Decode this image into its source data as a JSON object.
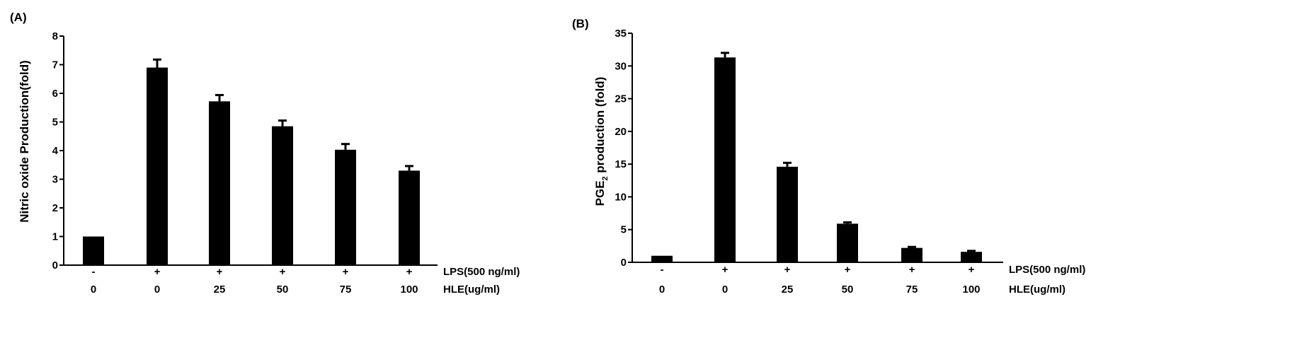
{
  "chart_data": [
    {
      "type": "bar",
      "panel_label": "(A)",
      "ylabel": "Nitric oxide Production(fold)",
      "ylim": [
        0,
        8
      ],
      "yticks": [
        0,
        1,
        2,
        3,
        4,
        5,
        6,
        7,
        8
      ],
      "categories": [
        "-/0",
        "+/0",
        "+/25",
        "+/50",
        "+/75",
        "+/100"
      ],
      "values": [
        1.0,
        6.9,
        5.72,
        4.85,
        4.03,
        3.3
      ],
      "errors": [
        0.0,
        0.28,
        0.22,
        0.2,
        0.2,
        0.16
      ],
      "row1_values": [
        "-",
        "+",
        "+",
        "+",
        "+",
        "+"
      ],
      "row1_label": "LPS(500 ng/ml)",
      "row2_values": [
        "0",
        "0",
        "25",
        "50",
        "75",
        "100"
      ],
      "row2_label": "HLE(ug/ml)",
      "bar_color": "#000000",
      "grid": false
    },
    {
      "type": "bar",
      "panel_label": "(B)",
      "ylabel": "PGE2 production (fold)",
      "ylabel_parts": {
        "pre": "PGE",
        "sub": "2",
        "post": " production (fold)"
      },
      "ylim": [
        0,
        35
      ],
      "yticks": [
        0,
        5,
        10,
        15,
        20,
        25,
        30,
        35
      ],
      "categories": [
        "-/0",
        "+/0",
        "+/25",
        "+/50",
        "+/75",
        "+/100"
      ],
      "values": [
        1.0,
        31.3,
        14.6,
        5.9,
        2.2,
        1.6
      ],
      "errors": [
        0.0,
        0.7,
        0.6,
        0.2,
        0.15,
        0.15
      ],
      "row1_values": [
        "-",
        "+",
        "+",
        "+",
        "+",
        "+"
      ],
      "row1_label": "LPS(500 ng/ml)",
      "row2_values": [
        "0",
        "0",
        "25",
        "50",
        "75",
        "100"
      ],
      "row2_label": "HLE(ug/ml)",
      "bar_color": "#000000",
      "grid": false
    }
  ]
}
